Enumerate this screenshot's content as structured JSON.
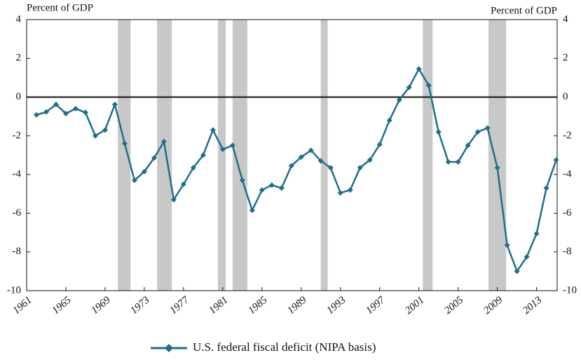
{
  "chart_data": {
    "type": "line",
    "ylabel": "Percent of GDP",
    "y2label": "Percent of GDP",
    "x": [
      1962,
      1963,
      1964,
      1965,
      1966,
      1967,
      1968,
      1969,
      1970,
      1971,
      1972,
      1973,
      1974,
      1975,
      1976,
      1977,
      1978,
      1979,
      1980,
      1981,
      1982,
      1983,
      1984,
      1985,
      1986,
      1987,
      1988,
      1989,
      1990,
      1991,
      1992,
      1993,
      1994,
      1995,
      1996,
      1997,
      1998,
      1999,
      2000,
      2001,
      2002,
      2003,
      2004,
      2005,
      2006,
      2007,
      2008,
      2009,
      2010,
      2011,
      2012,
      2013,
      2014,
      2015
    ],
    "series": [
      {
        "name": "U.S. federal fiscal deficit (NIPA basis)",
        "color": "#1f6f8b",
        "values": [
          -0.92,
          -0.77,
          -0.38,
          -0.85,
          -0.6,
          -0.8,
          -2.0,
          -1.7,
          -0.38,
          -2.4,
          -4.3,
          -3.85,
          -3.15,
          -2.3,
          -5.3,
          -4.5,
          -3.65,
          -3.0,
          -1.7,
          -2.7,
          -2.5,
          -4.3,
          -5.85,
          -4.8,
          -4.55,
          -4.7,
          -3.55,
          -3.1,
          -2.75,
          -3.3,
          -3.65,
          -4.95,
          -4.8,
          -3.65,
          -3.25,
          -2.45,
          -1.2,
          -0.15,
          0.5,
          1.45,
          0.6,
          -1.8,
          -3.35,
          -3.35,
          -2.5,
          -1.8,
          -1.6,
          -3.65,
          -7.65,
          -9.0,
          -8.25,
          -7.05,
          -4.7,
          -3.25
        ]
      }
    ],
    "recessions": [
      [
        1970.3,
        1971.6
      ],
      [
        1974.3,
        1975.8
      ],
      [
        1980.5,
        1981.3
      ],
      [
        1982.0,
        1983.5
      ],
      [
        1991.0,
        1991.7
      ],
      [
        2001.4,
        2002.4
      ],
      [
        2008.1,
        2009.9
      ]
    ],
    "recession_color": "#c8c8c8",
    "xlim": [
      1961,
      2015.1
    ],
    "xticks": [
      1961,
      1965,
      1969,
      1973,
      1977,
      1981,
      1985,
      1989,
      1993,
      1997,
      2001,
      2005,
      2009,
      2013
    ],
    "ylim": [
      -10,
      4
    ],
    "yticks": [
      -10,
      -8,
      -6,
      -4,
      -2,
      0,
      2,
      4
    ],
    "y2lim": [
      -10,
      4
    ],
    "y2ticks": [
      -10,
      -8,
      -6,
      -4,
      -2,
      0,
      2,
      4
    ]
  }
}
